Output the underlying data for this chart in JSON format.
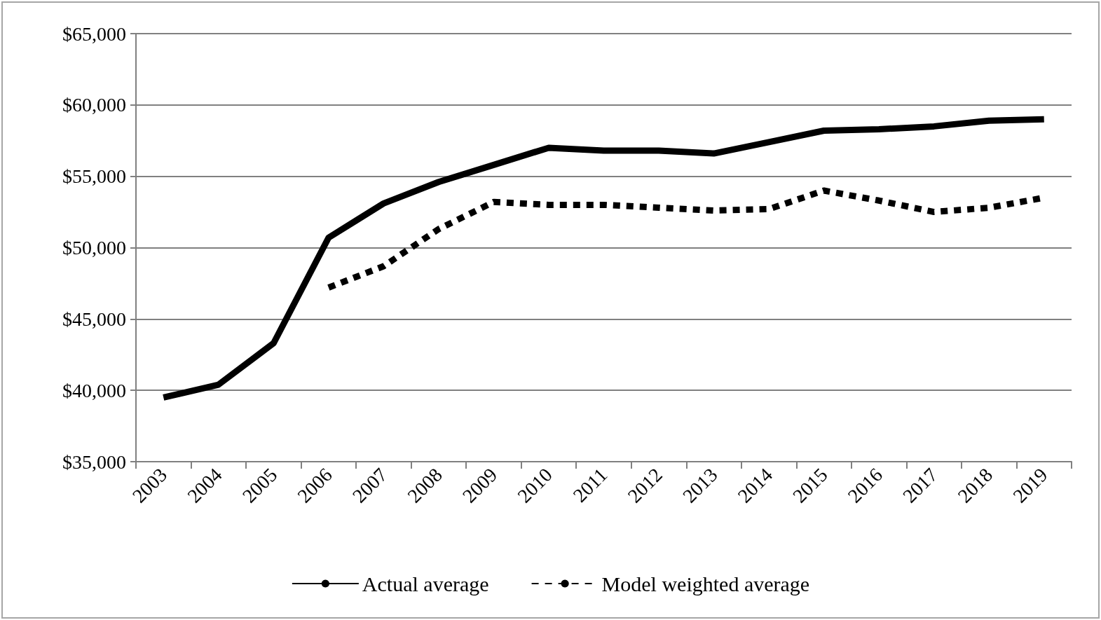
{
  "chart_data": {
    "type": "line",
    "categories": [
      "2003",
      "2004",
      "2005",
      "2006",
      "2007",
      "2008",
      "2009",
      "2010",
      "2011",
      "2012",
      "2013",
      "2014",
      "2015",
      "2016",
      "2017",
      "2018",
      "2019"
    ],
    "series": [
      {
        "name": "Actual average",
        "color": "#000000",
        "line_style": "solid",
        "values": [
          39500,
          40400,
          43300,
          50700,
          53100,
          54600,
          55800,
          57000,
          56800,
          56800,
          56600,
          57400,
          58200,
          58300,
          58500,
          58900,
          59000
        ]
      },
      {
        "name": "Model weighted average",
        "color": "#000000",
        "line_style": "dashed",
        "values": [
          null,
          null,
          null,
          47200,
          48700,
          51300,
          53200,
          53000,
          53000,
          52800,
          52600,
          52700,
          54000,
          53300,
          52500,
          52800,
          53500
        ]
      }
    ],
    "ylim": [
      35000,
      65000
    ],
    "yticks": [
      {
        "value": 35000,
        "label": "$35,000"
      },
      {
        "value": 40000,
        "label": "$40,000"
      },
      {
        "value": 45000,
        "label": "$45,000"
      },
      {
        "value": 50000,
        "label": "$50,000"
      },
      {
        "value": 55000,
        "label": "$55,000"
      },
      {
        "value": 60000,
        "label": "$60,000"
      },
      {
        "value": 65000,
        "label": "$65,000"
      }
    ],
    "grid": "y",
    "legend": "bottom",
    "marker": "none"
  }
}
